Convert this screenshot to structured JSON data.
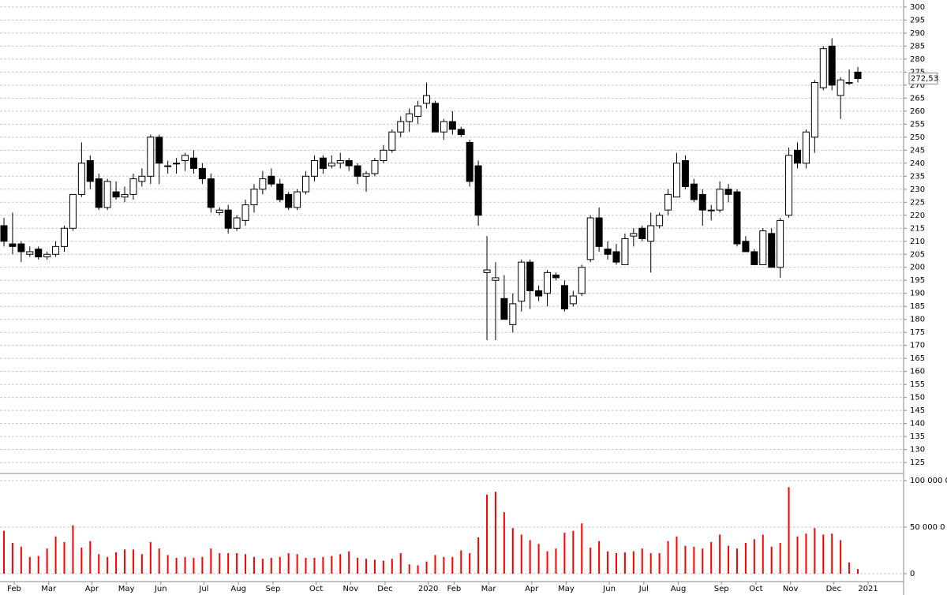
{
  "chart_data": [
    {
      "type": "candlestick",
      "categories": [
        "Feb",
        null,
        null,
        null,
        "Mar",
        null,
        null,
        null,
        null,
        "Apr",
        null,
        null,
        null,
        "May",
        null,
        null,
        null,
        "Jun",
        null,
        null,
        null,
        null,
        "Jul",
        null,
        null,
        null,
        "Aug",
        null,
        null,
        null,
        "Sep",
        null,
        null,
        null,
        null,
        "Oct",
        null,
        null,
        null,
        "Nov",
        null,
        null,
        null,
        "Dec",
        null,
        null,
        null,
        null,
        "2020",
        null,
        null,
        "Feb",
        null,
        null,
        null,
        "Mar",
        null,
        null,
        null,
        null,
        "Apr",
        null,
        null,
        null,
        "May",
        null,
        null,
        null,
        null,
        "Jun",
        null,
        null,
        null,
        "Jul",
        null,
        null,
        null,
        "Aug",
        null,
        null,
        null,
        null,
        "Sep",
        null,
        null,
        null,
        "Oct",
        null,
        null,
        null,
        "Nov",
        null,
        null,
        null,
        null,
        "Dec",
        null,
        null,
        null,
        "2021"
      ],
      "open": [
        216,
        209,
        209,
        205,
        207,
        204,
        205,
        208,
        215,
        228,
        241,
        234,
        223,
        229,
        227,
        228,
        233,
        235,
        250,
        239,
        240,
        241,
        242,
        238,
        234,
        221,
        222,
        215,
        218,
        224,
        230,
        235,
        232,
        228,
        223,
        229,
        235,
        242,
        239,
        240,
        241,
        239,
        235,
        236,
        241,
        245,
        252,
        256,
        258,
        263,
        263,
        252,
        256,
        253,
        248,
        239,
        198,
        195,
        188,
        178,
        187,
        202,
        191,
        190,
        197,
        193,
        186,
        190,
        203,
        219,
        207,
        206,
        201,
        212,
        215,
        210,
        216,
        222,
        227,
        241,
        232,
        228,
        222,
        222,
        230,
        229,
        210,
        206,
        201,
        213,
        200,
        220,
        245,
        240,
        250,
        269,
        285,
        266,
        271,
        275
      ],
      "high": [
        219,
        221,
        210,
        208,
        208,
        206,
        210,
        216,
        228,
        248,
        243,
        236,
        234,
        233,
        231,
        236,
        238,
        251,
        251,
        241,
        242,
        244,
        245,
        240,
        236,
        223,
        224,
        220,
        226,
        232,
        237,
        238,
        234,
        229,
        230,
        237,
        243,
        243,
        243,
        244,
        242,
        240,
        237,
        242,
        247,
        253,
        258,
        261,
        264,
        271,
        264,
        257,
        260,
        254,
        249,
        241,
        212,
        202,
        197,
        190,
        203,
        203,
        193,
        199,
        198,
        195,
        191,
        201,
        220,
        223,
        210,
        209,
        213,
        215,
        216,
        221,
        221,
        230,
        244,
        243,
        234,
        230,
        224,
        233,
        232,
        230,
        212,
        207,
        215,
        215,
        219,
        246,
        248,
        253,
        272,
        285,
        288,
        273,
        276,
        277
      ],
      "low": [
        208,
        205,
        202,
        204,
        203,
        203,
        204,
        206,
        214,
        227,
        230,
        222,
        222,
        226,
        225,
        226,
        231,
        232,
        232,
        236,
        236,
        237,
        236,
        232,
        221,
        220,
        213,
        214,
        216,
        221,
        228,
        231,
        225,
        222,
        222,
        228,
        233,
        236,
        238,
        238,
        237,
        232,
        229,
        235,
        240,
        244,
        250,
        252,
        255,
        261,
        252,
        249,
        251,
        250,
        231,
        216,
        172,
        172,
        180,
        175,
        183,
        184,
        187,
        185,
        195,
        183,
        185,
        189,
        202,
        206,
        203,
        201,
        201,
        208,
        210,
        198,
        215,
        220,
        227,
        230,
        225,
        216,
        218,
        221,
        225,
        208,
        206,
        201,
        201,
        200,
        196,
        219,
        238,
        238,
        244,
        268,
        268,
        257,
        270,
        271
      ],
      "close": [
        210,
        208,
        206,
        206,
        204,
        205,
        208,
        215,
        228,
        240,
        233,
        223,
        233,
        227,
        228,
        234,
        235,
        250,
        240,
        239,
        240,
        243,
        238,
        234,
        223,
        222,
        215,
        219,
        224,
        230,
        234,
        232,
        226,
        223,
        229,
        235,
        241,
        238,
        240,
        241,
        239,
        235,
        236,
        241,
        245,
        252,
        256,
        259,
        262,
        266,
        252,
        256,
        253,
        251,
        233,
        220,
        199,
        196,
        180,
        186,
        202,
        191,
        189,
        198,
        196,
        184,
        189,
        200,
        219,
        208,
        205,
        202,
        211,
        213,
        211,
        216,
        220,
        228,
        240,
        231,
        226,
        222,
        222,
        230,
        228,
        209,
        206,
        201,
        214,
        200,
        218,
        243,
        240,
        252,
        271,
        284,
        270,
        272,
        271,
        272.53
      ],
      "up_color": "#ffffff",
      "down_color": "#000000",
      "last_price": {
        "value": 272.53,
        "label": "272,53"
      },
      "ylim": [
        121.4,
        302.7
      ],
      "yticks": [
        125,
        130,
        135,
        140,
        145,
        150,
        155,
        160,
        165,
        170,
        175,
        180,
        185,
        190,
        195,
        200,
        205,
        210,
        215,
        220,
        225,
        230,
        235,
        240,
        245,
        250,
        255,
        260,
        265,
        270,
        275,
        280,
        285,
        290,
        295,
        300
      ],
      "grid": true
    },
    {
      "type": "bar",
      "color": "#ff0000",
      "values": [
        46000000,
        33000000,
        29000000,
        18000000,
        19000000,
        27000000,
        40000000,
        34000000,
        52000000,
        28000000,
        35000000,
        21000000,
        18000000,
        23000000,
        26000000,
        26000000,
        21000000,
        34000000,
        27000000,
        20000000,
        17000000,
        18000000,
        17000000,
        18000000,
        27000000,
        22000000,
        22000000,
        22000000,
        21000000,
        18000000,
        16000000,
        17000000,
        18000000,
        22000000,
        21000000,
        17000000,
        17000000,
        18000000,
        19000000,
        21000000,
        24000000,
        17000000,
        16000000,
        15000000,
        14000000,
        16000000,
        22000000,
        10000000,
        9000000,
        13000000,
        20000000,
        18000000,
        18000000,
        25000000,
        22000000,
        39000000,
        85000000,
        88000000,
        66000000,
        49000000,
        42000000,
        36000000,
        32000000,
        24000000,
        27000000,
        44000000,
        46000000,
        54000000,
        28000000,
        35000000,
        24000000,
        22000000,
        23000000,
        24000000,
        27000000,
        22000000,
        22000000,
        35000000,
        40000000,
        30000000,
        29000000,
        27000000,
        34000000,
        42000000,
        30000000,
        27000000,
        33000000,
        37000000,
        42000000,
        29000000,
        33000000,
        93000000,
        40000000,
        43000000,
        49000000,
        42000000,
        43000000,
        36000000,
        12000000,
        5000000
      ],
      "ylim": [
        -6800000,
        105100000
      ],
      "yticks": [
        0,
        {
          "value": 50000000,
          "label": "50 000 0"
        },
        {
          "value": 100000000,
          "label": "100 000 0"
        }
      ],
      "grid": true
    }
  ]
}
